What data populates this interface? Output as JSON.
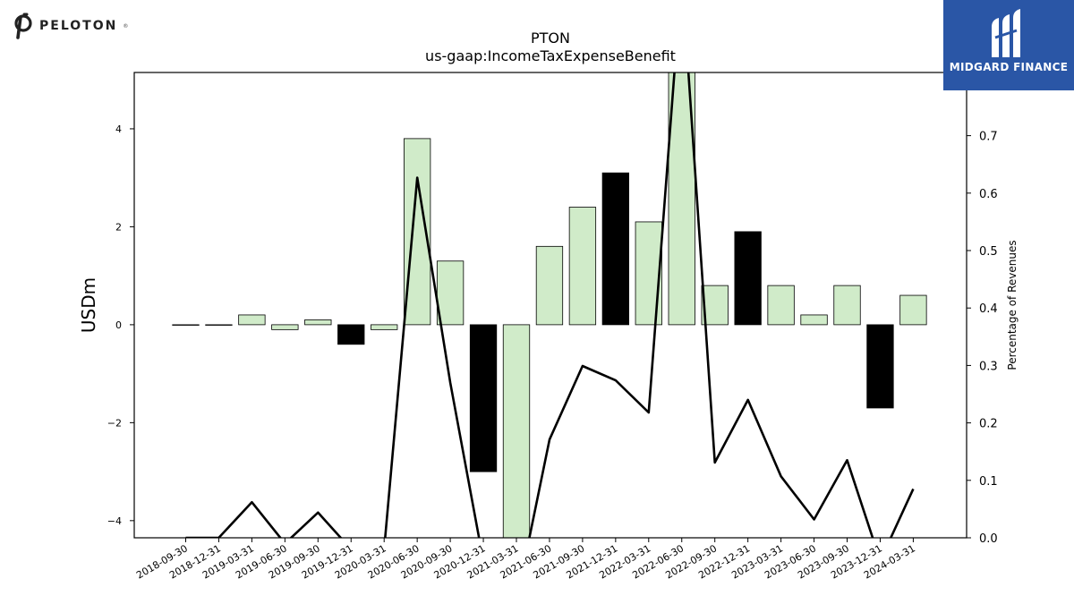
{
  "chart_data": {
    "type": "bar",
    "title": "PTON",
    "subtitle": "us-gaap:IncomeTaxExpenseBenefit",
    "ylabel": "USDm",
    "y2label": "Percentage of Revenues",
    "ylim": [
      -4.35,
      5.15
    ],
    "y2lim": [
      0.0,
      0.81
    ],
    "yticks": [
      -4,
      -2,
      0,
      2,
      4
    ],
    "yticklabels": [
      "−4",
      "−2",
      "0",
      "2",
      "4"
    ],
    "y2ticks": [
      0.0,
      0.1,
      0.2,
      0.3,
      0.4,
      0.5,
      0.6,
      0.7
    ],
    "y2ticklabels": [
      "0.0",
      "0.1",
      "0.2",
      "0.3",
      "0.4",
      "0.5",
      "0.6",
      "0.7"
    ],
    "categories": [
      "2018-09-30",
      "2018-12-31",
      "2019-03-31",
      "2019-06-30",
      "2019-09-30",
      "2019-12-31",
      "2020-03-31",
      "2020-06-30",
      "2020-09-30",
      "2020-12-31",
      "2021-03-31",
      "2021-06-30",
      "2021-09-30",
      "2021-12-31",
      "2022-03-31",
      "2022-06-30",
      "2022-09-30",
      "2022-12-31",
      "2023-03-31",
      "2023-06-30",
      "2023-09-30",
      "2023-12-31",
      "2024-03-31"
    ],
    "series": [
      {
        "type": "bar",
        "axis": "left",
        "values": [
          0.0,
          0.0,
          0.2,
          -0.1,
          0.1,
          -0.4,
          -0.1,
          3.8,
          1.3,
          -3.0,
          -4.6,
          1.6,
          2.4,
          3.1,
          2.1,
          5.6,
          0.8,
          1.9,
          0.8,
          0.2,
          0.8,
          -1.7,
          0.6
        ],
        "colors": [
          "#d0ebc9",
          "#d0ebc9",
          "#d0ebc9",
          "#d0ebc9",
          "#d0ebc9",
          "#000000",
          "#d0ebc9",
          "#d0ebc9",
          "#d0ebc9",
          "#000000",
          "#d0ebc9",
          "#d0ebc9",
          "#d0ebc9",
          "#000000",
          "#d0ebc9",
          "#d0ebc9",
          "#d0ebc9",
          "#000000",
          "#d0ebc9",
          "#d0ebc9",
          "#d0ebc9",
          "#000000",
          "#d0ebc9"
        ]
      },
      {
        "type": "line",
        "axis": "right",
        "color": "#000000",
        "values": [
          0.0,
          0.0,
          0.062,
          -0.01,
          0.044,
          -0.02,
          -0.02,
          0.627,
          0.27,
          -0.04,
          -0.11,
          0.171,
          0.299,
          0.274,
          0.218,
          0.98,
          0.131,
          0.24,
          0.107,
          0.032,
          0.135,
          -0.04,
          0.085
        ]
      }
    ],
    "grid": false
  },
  "logos": {
    "left": {
      "text": "PELOTON",
      "mark": "®"
    },
    "right": {
      "text": "MIDGARD FINANCE"
    }
  }
}
